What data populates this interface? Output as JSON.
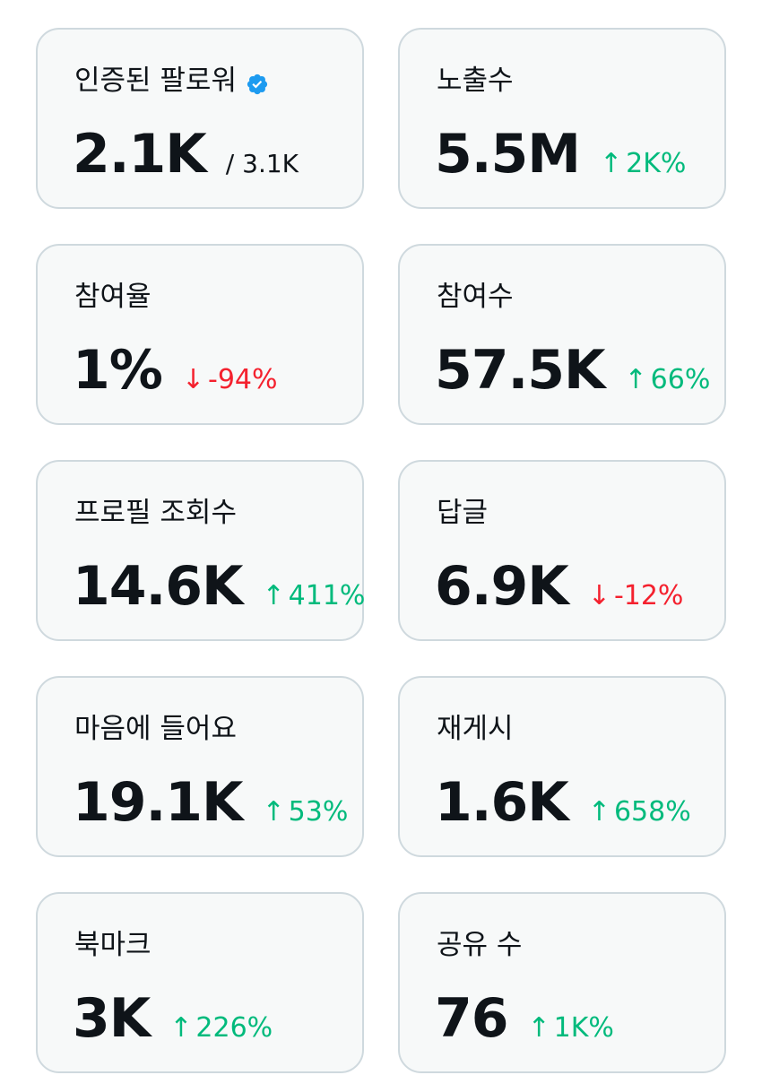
{
  "colors": {
    "card_background": "#f7f9f9",
    "card_border": "#cfd9de",
    "text_primary": "#0f1419",
    "positive": "#00ba7c",
    "negative": "#f4212e",
    "verified_badge": "#1d9bf0"
  },
  "metrics": [
    {
      "label": "인증된 팔로워",
      "value": "2.1K",
      "sub": "/ 3.1K",
      "icon": "verified-badge-icon"
    },
    {
      "label": "노출수",
      "value": "5.5M",
      "direction": "up",
      "arrow": "↑",
      "change": "2K%"
    },
    {
      "label": "참여율",
      "value": "1%",
      "direction": "down",
      "arrow": "↓",
      "change": "-94%"
    },
    {
      "label": "참여수",
      "value": "57.5K",
      "direction": "up",
      "arrow": "↑",
      "change": "66%"
    },
    {
      "label": "프로필 조회수",
      "value": "14.6K",
      "direction": "up",
      "arrow": "↑",
      "change": "411%"
    },
    {
      "label": "답글",
      "value": "6.9K",
      "direction": "down",
      "arrow": "↓",
      "change": "-12%"
    },
    {
      "label": "마음에 들어요",
      "value": "19.1K",
      "direction": "up",
      "arrow": "↑",
      "change": "53%"
    },
    {
      "label": "재게시",
      "value": "1.6K",
      "direction": "up",
      "arrow": "↑",
      "change": "658%"
    },
    {
      "label": "북마크",
      "value": "3K",
      "direction": "up",
      "arrow": "↑",
      "change": "226%"
    },
    {
      "label": "공유 수",
      "value": "76",
      "direction": "up",
      "arrow": "↑",
      "change": "1K%"
    }
  ]
}
